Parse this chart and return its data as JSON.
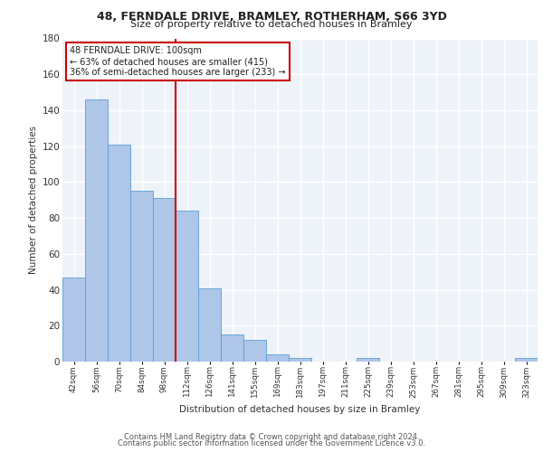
{
  "title1": "48, FERNDALE DRIVE, BRAMLEY, ROTHERHAM, S66 3YD",
  "title2": "Size of property relative to detached houses in Bramley",
  "xlabel": "Distribution of detached houses by size in Bramley",
  "ylabel": "Number of detached properties",
  "categories": [
    "42sqm",
    "56sqm",
    "70sqm",
    "84sqm",
    "98sqm",
    "112sqm",
    "126sqm",
    "141sqm",
    "155sqm",
    "169sqm",
    "183sqm",
    "197sqm",
    "211sqm",
    "225sqm",
    "239sqm",
    "253sqm",
    "267sqm",
    "281sqm",
    "295sqm",
    "309sqm",
    "323sqm"
  ],
  "values": [
    47,
    146,
    121,
    95,
    91,
    84,
    41,
    15,
    12,
    4,
    2,
    0,
    0,
    2,
    0,
    0,
    0,
    0,
    0,
    0,
    2
  ],
  "bar_color": "#aec6e8",
  "bar_edge_color": "#5a9fd4",
  "subject_bar_index": 4,
  "subject_line_color": "#cc0000",
  "annotation_text": "48 FERNDALE DRIVE: 100sqm\n← 63% of detached houses are smaller (415)\n36% of semi-detached houses are larger (233) →",
  "annotation_box_color": "#ffffff",
  "annotation_box_edge_color": "#cc0000",
  "background_color": "#eef2f9",
  "grid_color": "#ffffff",
  "footer_line1": "Contains HM Land Registry data © Crown copyright and database right 2024.",
  "footer_line2": "Contains public sector information licensed under the Government Licence v3.0.",
  "ylim": [
    0,
    180
  ],
  "yticks": [
    0,
    20,
    40,
    60,
    80,
    100,
    120,
    140,
    160,
    180
  ]
}
